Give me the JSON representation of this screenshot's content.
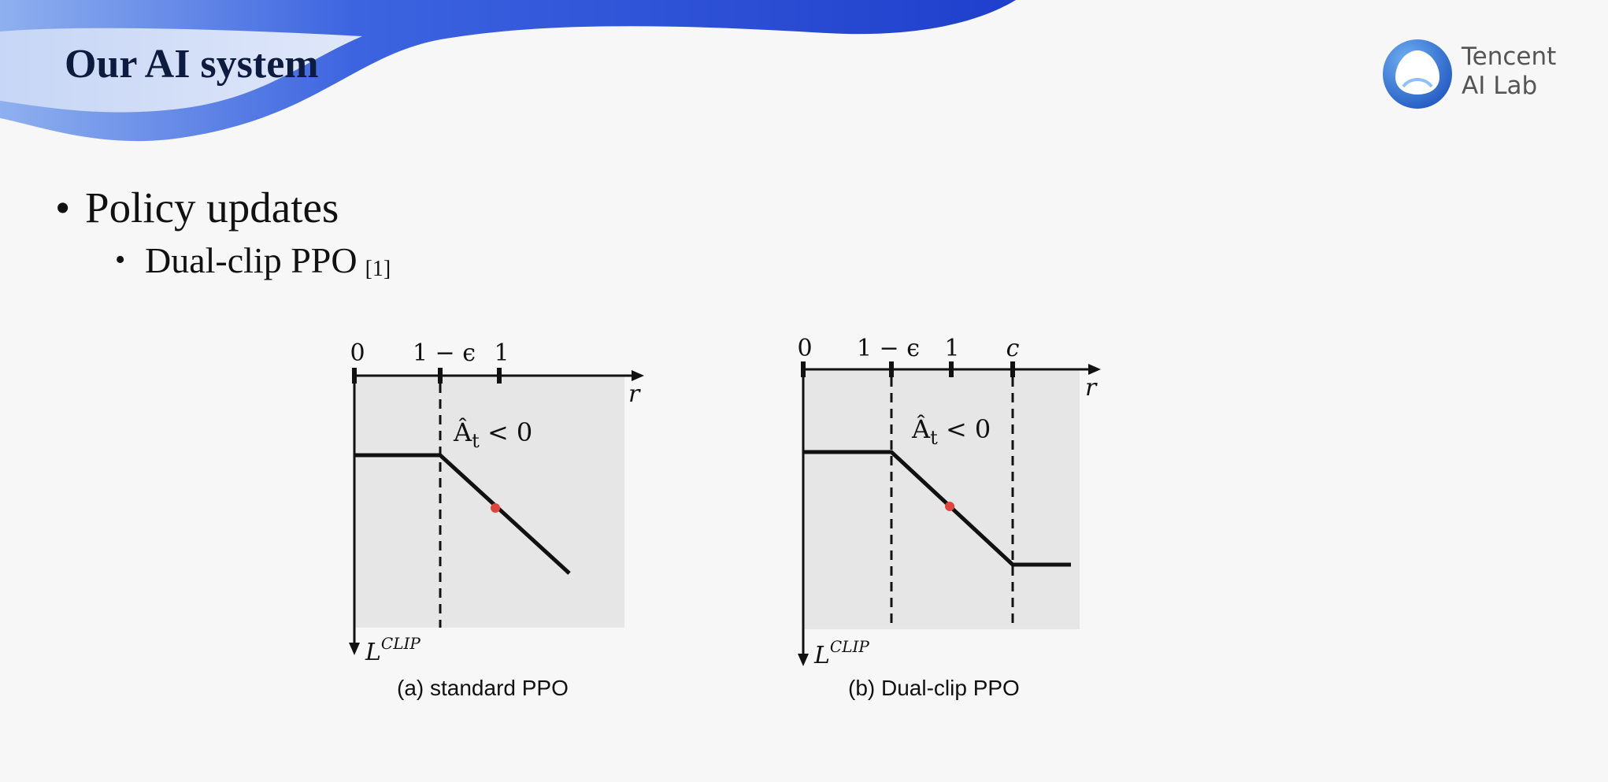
{
  "slide": {
    "title": "Our AI system",
    "logo_name": "tencent-ai-lab-logo",
    "logo_line1": "Tencent",
    "logo_line2": "AI Lab",
    "bullet1": "Policy updates",
    "bullet2": "Dual-clip PPO",
    "citation": "[1]"
  },
  "diagrams": [
    {
      "caption": "(a) standard PPO",
      "tick_labels": [
        "0",
        "1 − ϵ",
        "1"
      ],
      "x_axis_label": "r",
      "condition_label": "Â",
      "condition_sub": "t",
      "condition_rest": " < 0",
      "y_axis_label": "L",
      "y_axis_sup": "CLIP"
    },
    {
      "caption": "(b) Dual-clip PPO",
      "tick_labels": [
        "0",
        "1 − ϵ",
        "1",
        "c"
      ],
      "x_axis_label": "r",
      "condition_label": "Â",
      "condition_sub": "t",
      "condition_rest": " < 0",
      "y_axis_label": "L",
      "y_axis_sup": "CLIP"
    }
  ],
  "colors": {
    "title": "#0d1b3f",
    "wave_blue": "#2a4fd6",
    "wave_light": "#8fb0ee",
    "plot_bg": "#e6e6e6",
    "marker": "#e0443a"
  }
}
